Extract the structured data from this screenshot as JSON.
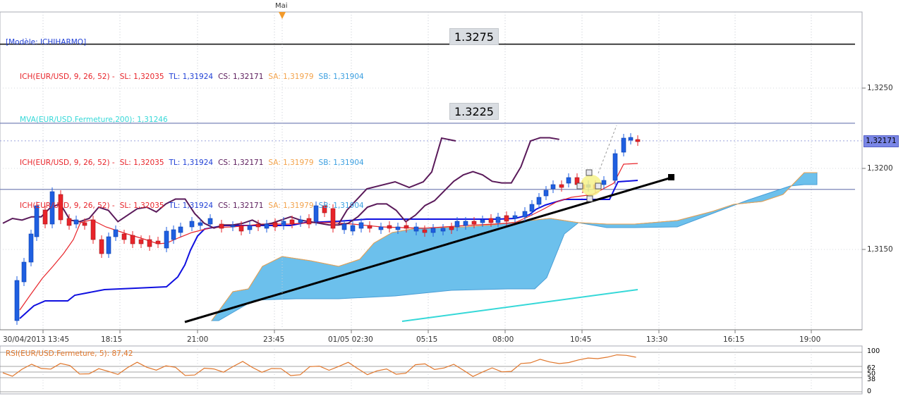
{
  "marker": {
    "label": "Mai"
  },
  "legend": {
    "model": "[Modèle: ICHIHARMO]",
    "rows": [
      {
        "name": "ICH(EUR/USD, 9, 26, 52) -",
        "sl": "SL: 1,32035",
        "tl": "TL: 1,31924",
        "cs": "CS: 1,32171",
        "sa": "SA: 1,31979",
        "sb": "SB: 1,31904",
        "colors": {
          "name": "#e8242a",
          "sl": "#e8242a",
          "tl": "#1f3fd6",
          "cs": "#5a1a5a",
          "sa": "#f3a24a",
          "sb": "#3b9fe0"
        }
      },
      {
        "name": "MVA(EUR/USD.Fermeture,200): 1,31246",
        "colors": {
          "name": "#35d8d8"
        }
      },
      {
        "name": "ICH(EUR/USD, 9, 26, 52) -",
        "sl": "SL: 1,32035",
        "tl": "TL: 1,31924",
        "cs": "CS: 1,32171",
        "sa": "SA: 1,31979",
        "sb": "SB: 1,31904",
        "colors": {
          "name": "#e8242a",
          "sl": "#e8242a",
          "tl": "#1f3fd6",
          "cs": "#5a1a5a",
          "sa": "#f3a24a",
          "sb": "#3b9fe0"
        }
      },
      {
        "name": "ICH(EUR/USD, 9, 26, 52) -",
        "sl": "SL: 1,32035",
        "tl": "TL: 1,31924",
        "cs": "CS: 1,32171",
        "sa": "SA: 1,31979",
        "sb": "SB: 1,31904",
        "colors": {
          "name": "#e8242a",
          "sl": "#e8242a",
          "tl": "#1f3fd6",
          "cs": "#5a1a5a",
          "sa": "#f3a24a",
          "sb": "#3b9fe0"
        }
      }
    ]
  },
  "annotations": {
    "level_1": "1.3275",
    "level_2": "1.3225"
  },
  "price_axis": {
    "ticks": [
      {
        "value": 1.325,
        "label": "1,3250"
      },
      {
        "value": 1.32,
        "label": "1,3200"
      },
      {
        "value": 1.315,
        "label": "1,3150"
      }
    ],
    "current_price": "1,32171"
  },
  "time_axis": {
    "ticks": [
      "30/04/2013 13:45",
      "18:15",
      "21:00",
      "23:45",
      "01/05 02:30",
      "05:15",
      "08:00",
      "10:45",
      "13:30",
      "16:15",
      "19:00"
    ]
  },
  "rsi": {
    "title": "RSI(EUR/USD.Fermeture, 5): 87,42",
    "levels": [
      "100",
      "62",
      "50",
      "38",
      "0"
    ]
  },
  "colors": {
    "candle_up": "#1f5fe0",
    "candle_down": "#e8242a",
    "kijun": "#1010e0",
    "tenkan": "#e8242a",
    "chikou": "#5a1a5a",
    "cloud": "#6cc0ec",
    "senkou_a": "#f3a24a",
    "mva": "#35d8d8",
    "trendline": "#000000",
    "level_line": "#1a1a1a",
    "hline": "#7a84b8",
    "rsi": "#e0762b"
  },
  "chart_data": {
    "type": "candlestick",
    "instrument": "EUR/USD",
    "ylim": [
      1.3113,
      1.3307
    ],
    "series": [
      {
        "name": "Chikou (CS)",
        "x": [
          0,
          1,
          2,
          3,
          4,
          5,
          6,
          7,
          8,
          9,
          10,
          11,
          12,
          13,
          14,
          15,
          16,
          17,
          18,
          19,
          20,
          21,
          22,
          23,
          24,
          25,
          26,
          27,
          28,
          29,
          30,
          31,
          32,
          33,
          34,
          35,
          36,
          37,
          38,
          39,
          40,
          41,
          42,
          43,
          44,
          45,
          46,
          47,
          48,
          49,
          50,
          51,
          52,
          53,
          54,
          55,
          56,
          57,
          58
        ],
        "values": [
          1.3166,
          1.3169,
          1.3168,
          1.317,
          1.317,
          1.3176,
          1.3178,
          1.3168,
          1.3167,
          1.3169,
          1.3176,
          1.3174,
          1.3167,
          1.3171,
          1.3175,
          1.3176,
          1.3173,
          1.3178,
          1.3181,
          1.3181,
          1.3172,
          1.3166,
          1.3163,
          1.3165,
          1.3165,
          1.3166,
          1.3168,
          1.3165,
          1.3166,
          1.3168,
          1.317,
          1.3168,
          1.3167,
          1.3166,
          1.3165,
          1.3165,
          1.3166,
          1.317,
          1.3176,
          1.3178,
          1.3178,
          1.3174,
          1.3167,
          1.3171,
          1.3177,
          1.318,
          1.3186,
          1.3192,
          1.3196,
          1.3198,
          1.3196,
          1.3192,
          1.3191,
          1.3191,
          1.3201,
          1.3217,
          1.3219,
          1.3219,
          1.3218
        ]
      },
      {
        "name": "Kijun (TL)",
        "values": "step line from 1.3126 to 1.3192"
      },
      {
        "name": "Tenkan (SL)",
        "values": "line from 1.3122 to 1.3203"
      }
    ],
    "last_close": 1.32171,
    "horizontal_levels": [
      1.3277,
      1.3228,
      1.3187
    ],
    "rsi_levels": [
      100,
      62,
      50,
      38,
      0
    ],
    "rsi_last": 87.42
  }
}
